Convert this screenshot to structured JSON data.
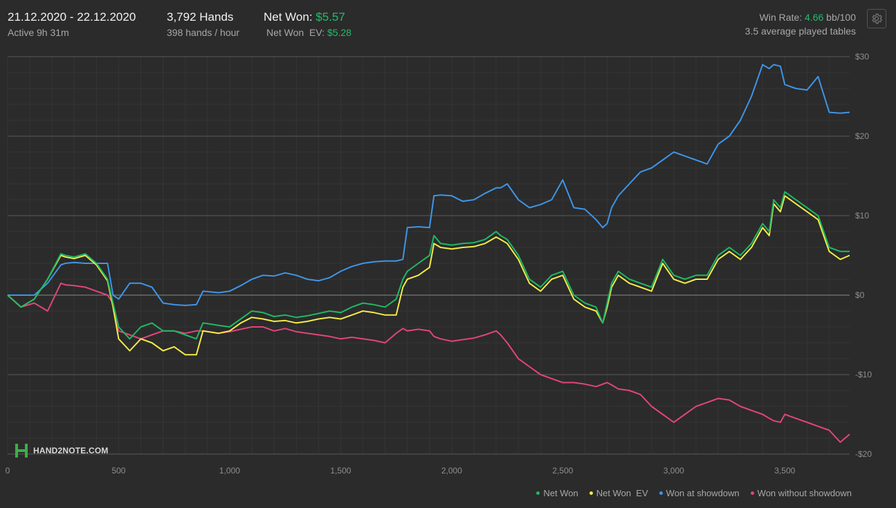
{
  "header": {
    "date_range": "21.12.2020 - 22.12.2020",
    "active": "Active 9h 31m",
    "hands": "3,792 Hands",
    "hands_rate": "398 hands / hour",
    "net_won_label": "Net Won:",
    "net_won_value": "$5.57",
    "net_won_ev_label": "Net Won  EV:",
    "net_won_ev_value": "$5.28",
    "win_rate_label": "Win Rate:",
    "win_rate_value": "4.66",
    "win_rate_unit": "bb/100",
    "avg_tables": "3.5 average played tables"
  },
  "settings_icon": "gear-icon",
  "watermark": {
    "text": "HAND2NOTE.COM",
    "accent": "#3cae48"
  },
  "colors": {
    "net_won": "#1fb865",
    "net_won_ev": "#f3ec48",
    "showdown": "#3f95e8",
    "non_showdown": "#e2457a",
    "positive": "#1fbf6a"
  },
  "chart_data": {
    "type": "line",
    "title": "",
    "xlabel": "",
    "ylabel": "",
    "xlim": [
      0,
      3792
    ],
    "ylim": [
      -20,
      30
    ],
    "x_ticks": [
      0,
      500,
      1000,
      1500,
      2000,
      2500,
      3000,
      3500
    ],
    "x_tick_labels": [
      "0",
      "500",
      "1,000",
      "1,500",
      "2,000",
      "2,500",
      "3,000",
      "3,500"
    ],
    "y_ticks": [
      30,
      20,
      10,
      0,
      -10,
      -20
    ],
    "y_tick_labels": [
      "$30",
      "$20",
      "$10",
      "$0",
      "-$10",
      "-$20"
    ],
    "grid": true,
    "legend_position": "bottom-right",
    "x": [
      0,
      60,
      120,
      180,
      240,
      260,
      300,
      350,
      400,
      450,
      475,
      500,
      550,
      600,
      650,
      700,
      750,
      800,
      850,
      880,
      950,
      1000,
      1050,
      1100,
      1150,
      1200,
      1250,
      1300,
      1350,
      1400,
      1450,
      1500,
      1550,
      1600,
      1650,
      1700,
      1750,
      1780,
      1800,
      1850,
      1900,
      1920,
      1950,
      2000,
      2050,
      2100,
      2150,
      2200,
      2220,
      2250,
      2300,
      2350,
      2400,
      2450,
      2500,
      2550,
      2600,
      2650,
      2680,
      2700,
      2720,
      2750,
      2800,
      2850,
      2900,
      2950,
      3000,
      3050,
      3100,
      3150,
      3200,
      3250,
      3300,
      3350,
      3400,
      3430,
      3450,
      3480,
      3500,
      3550,
      3600,
      3650,
      3700,
      3750,
      3792
    ],
    "series": [
      {
        "name": "Net Won",
        "values": [
          0,
          -1.5,
          -0.5,
          2,
          5.2,
          5,
          4.8,
          5.2,
          4,
          2,
          -1,
          -4,
          -5.5,
          -4,
          -3.5,
          -4.5,
          -4.5,
          -5,
          -5.5,
          -3.5,
          -3.8,
          -4,
          -3,
          -2,
          -2.2,
          -2.7,
          -2.5,
          -2.8,
          -2.6,
          -2.3,
          -2,
          -2.2,
          -1.5,
          -1,
          -1.2,
          -1.5,
          -0.5,
          2,
          3,
          4,
          5,
          7.5,
          6.5,
          6.3,
          6.5,
          6.6,
          7,
          8,
          7.5,
          7,
          5,
          2,
          1,
          2.5,
          3,
          0,
          -1,
          -1.5,
          -3.5,
          -1,
          1.5,
          3,
          2,
          1.5,
          1,
          4.5,
          2.5,
          2,
          2.5,
          2.5,
          5,
          6,
          5,
          6.5,
          9,
          8,
          12,
          11,
          13,
          12,
          11,
          10,
          6,
          5.5,
          5.5
        ]
      },
      {
        "name": "Net Won  EV",
        "values": [
          0,
          -1.5,
          -0.5,
          2,
          5,
          4.8,
          4.6,
          5,
          3.8,
          1.8,
          -1.5,
          -5.5,
          -7,
          -5.5,
          -6,
          -7,
          -6.5,
          -7.5,
          -7.5,
          -4.5,
          -4.8,
          -4.5,
          -3.5,
          -2.8,
          -3,
          -3.3,
          -3.2,
          -3.5,
          -3.3,
          -3,
          -2.8,
          -3,
          -2.5,
          -2,
          -2.2,
          -2.5,
          -2.5,
          1,
          2,
          2.5,
          3.5,
          6.5,
          6,
          5.8,
          6,
          6.1,
          6.5,
          7.3,
          7,
          6.5,
          4.5,
          1.5,
          0.5,
          2,
          2.5,
          -0.5,
          -1.5,
          -2,
          -3.5,
          -1.5,
          1,
          2.5,
          1.5,
          1,
          0.5,
          4,
          2,
          1.5,
          2,
          2,
          4.5,
          5.5,
          4.5,
          6,
          8.5,
          7.5,
          11.5,
          10.5,
          12.5,
          11.5,
          10.5,
          9.5,
          5.5,
          4.5,
          5
        ]
      },
      {
        "name": "Won at showdown",
        "values": [
          0,
          0,
          0,
          1.5,
          3.8,
          4,
          4.1,
          4,
          4,
          4,
          0,
          -0.5,
          1.5,
          1.5,
          1,
          -1,
          -1.2,
          -1.3,
          -1.2,
          0.5,
          0.3,
          0.5,
          1.2,
          2,
          2.5,
          2.4,
          2.8,
          2.5,
          2,
          1.8,
          2.2,
          3,
          3.6,
          4,
          4.2,
          4.3,
          4.3,
          4.5,
          8.5,
          8.6,
          8.5,
          12.5,
          12.6,
          12.5,
          11.8,
          12,
          12.8,
          13.5,
          13.5,
          14,
          12,
          11,
          11.4,
          12,
          14.5,
          11,
          10.8,
          9.5,
          8.5,
          9,
          11,
          12.5,
          14,
          15.5,
          16,
          17,
          18,
          17.5,
          17,
          16.5,
          19,
          20,
          22,
          25,
          29,
          28.5,
          29,
          28.8,
          26.5,
          26,
          25.8,
          27.5,
          23,
          22.9,
          23
        ]
      },
      {
        "name": "Won without showdown",
        "values": [
          0,
          -1.5,
          -1,
          -2,
          1.5,
          1.3,
          1.2,
          1,
          0.5,
          0,
          -1,
          -4.5,
          -5,
          -5.5,
          -5,
          -4.5,
          -4.5,
          -4.8,
          -4.5,
          -4.5,
          -4.8,
          -4.6,
          -4.3,
          -4,
          -4,
          -4.5,
          -4.2,
          -4.6,
          -4.8,
          -5,
          -5.2,
          -5.5,
          -5.3,
          -5.5,
          -5.7,
          -6,
          -4.8,
          -4.2,
          -4.5,
          -4.3,
          -4.5,
          -5.2,
          -5.5,
          -5.8,
          -5.6,
          -5.4,
          -5,
          -4.5,
          -5,
          -6,
          -8,
          -9,
          -10,
          -10.5,
          -11,
          -11,
          -11.2,
          -11.5,
          -11.2,
          -11,
          -11.3,
          -11.8,
          -12,
          -12.5,
          -14,
          -15,
          -16,
          -15,
          -14,
          -13.5,
          -13,
          -13.2,
          -14,
          -14.5,
          -15,
          -15.5,
          -15.8,
          -16,
          -15,
          -15.5,
          -16,
          -16.5,
          -17,
          -18.5,
          -17.5
        ]
      }
    ]
  },
  "legend": {
    "items": [
      {
        "label": "Net Won"
      },
      {
        "label": "Net Won  EV"
      },
      {
        "label": "Won at showdown"
      },
      {
        "label": "Won without showdown"
      }
    ]
  }
}
